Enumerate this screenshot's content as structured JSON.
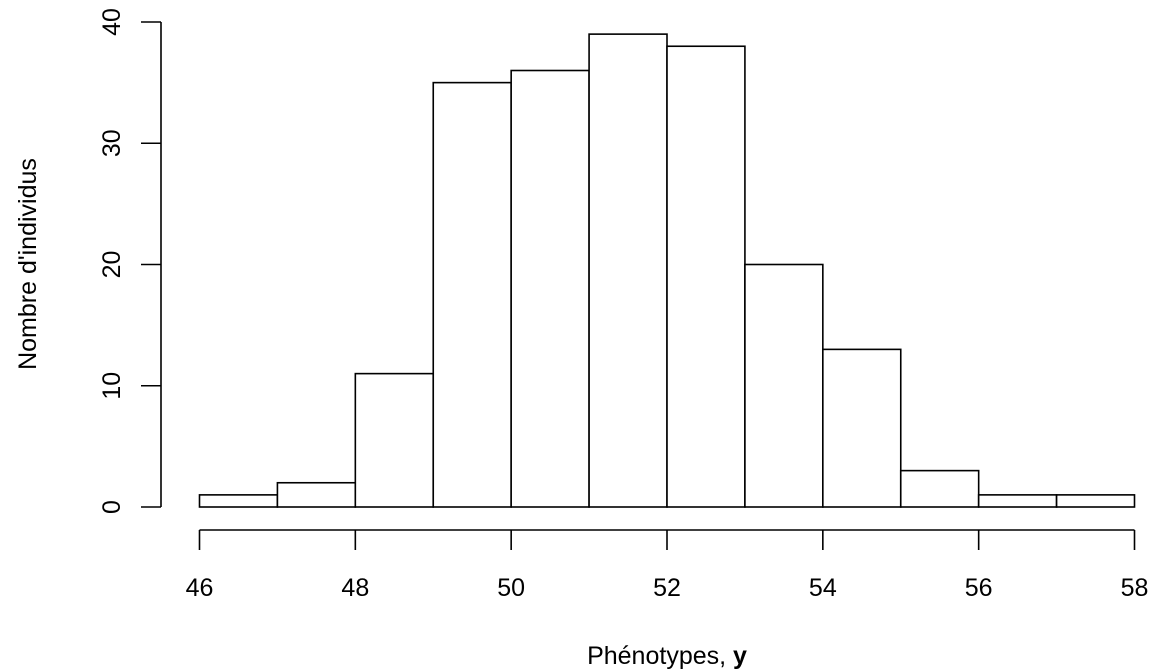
{
  "chart_data": {
    "type": "bar",
    "subtype": "histogram",
    "xlabel": "Phénotypes, ",
    "xlabel_bold": "y",
    "ylabel": "Nombre d'individus",
    "bins": [
      {
        "from": 46,
        "to": 47,
        "count": 1
      },
      {
        "from": 47,
        "to": 48,
        "count": 2
      },
      {
        "from": 48,
        "to": 49,
        "count": 11
      },
      {
        "from": 49,
        "to": 50,
        "count": 35
      },
      {
        "from": 50,
        "to": 51,
        "count": 36
      },
      {
        "from": 51,
        "to": 52,
        "count": 39
      },
      {
        "from": 52,
        "to": 53,
        "count": 38
      },
      {
        "from": 53,
        "to": 54,
        "count": 20
      },
      {
        "from": 54,
        "to": 55,
        "count": 13
      },
      {
        "from": 55,
        "to": 56,
        "count": 3
      },
      {
        "from": 56,
        "to": 57,
        "count": 1
      },
      {
        "from": 57,
        "to": 58,
        "count": 1
      }
    ],
    "xlim": [
      46,
      58
    ],
    "ylim": [
      0,
      40
    ],
    "x_ticks": [
      "46",
      "48",
      "50",
      "52",
      "54",
      "56",
      "58"
    ],
    "y_ticks": [
      "0",
      "10",
      "20",
      "30",
      "40"
    ],
    "grid": false,
    "colors": {
      "bar_fill": "#ffffff",
      "bar_stroke": "#000000"
    }
  }
}
